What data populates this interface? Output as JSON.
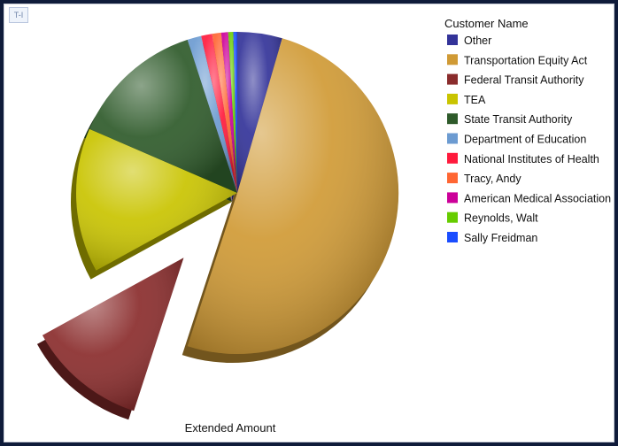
{
  "toolbar": {
    "corner_icon": "chart-options-icon",
    "corner_glyph": "T-I"
  },
  "chart_data": {
    "type": "pie",
    "title": "",
    "value_label": "Extended Amount",
    "legend_title": "Customer Name",
    "legend_position": "right",
    "exploded_slice": "Federal Transit Authority",
    "slices": [
      {
        "label": "Other",
        "value": 4.5,
        "color": "#333399"
      },
      {
        "label": "Transportation Equity Act",
        "value": 50.5,
        "color": "#d09a35"
      },
      {
        "label": "Federal Transit Authority",
        "value": 12.0,
        "color": "#8a2c2c"
      },
      {
        "label": "TEA",
        "value": 14.5,
        "color": "#c9c400"
      },
      {
        "label": "State Transit Authority",
        "value": 13.5,
        "color": "#2e5a2a"
      },
      {
        "label": "Department of Education",
        "value": 1.4,
        "color": "#6c9bd1"
      },
      {
        "label": "National Institutes of Health",
        "value": 1.1,
        "color": "#ff1a3c"
      },
      {
        "label": "Tracy, Andy",
        "value": 0.9,
        "color": "#ff6633"
      },
      {
        "label": "American Medical Association",
        "value": 0.7,
        "color": "#cc0099"
      },
      {
        "label": "Reynolds, Walt",
        "value": 0.5,
        "color": "#66cc00"
      },
      {
        "label": "Sally Freidman",
        "value": 0.4,
        "color": "#1a4dff"
      }
    ]
  }
}
